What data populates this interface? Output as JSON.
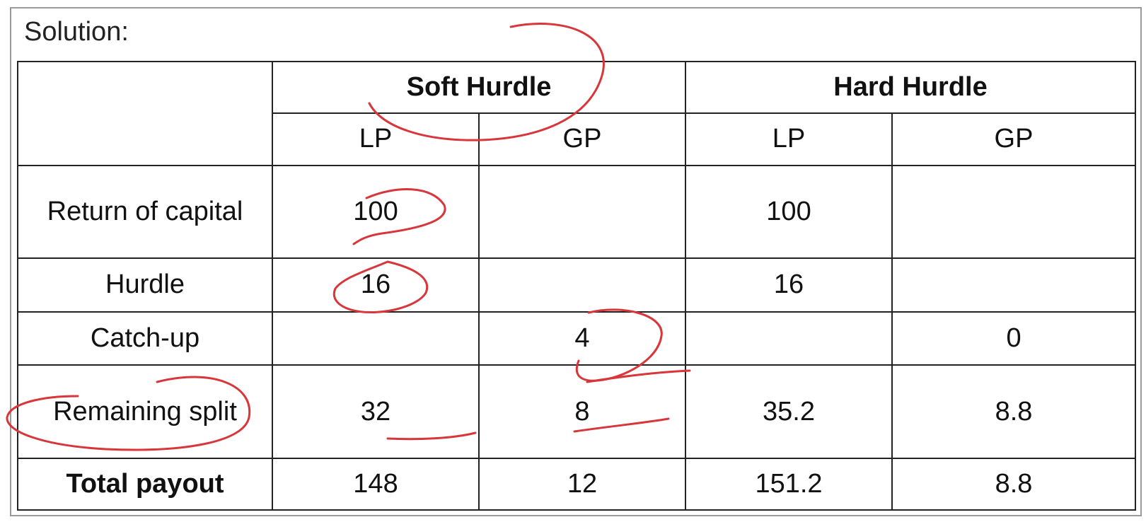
{
  "heading": "Solution:",
  "table": {
    "groups": [
      "Soft Hurdle",
      "Hard Hurdle"
    ],
    "subheaders": [
      "LP",
      "GP",
      "LP",
      "GP"
    ],
    "rows": [
      {
        "label": "Return of capital",
        "cells": [
          "100",
          "",
          "100",
          ""
        ]
      },
      {
        "label": "Hurdle",
        "cells": [
          "16",
          "",
          "16",
          ""
        ]
      },
      {
        "label": "Catch-up",
        "cells": [
          "",
          "4",
          "",
          "0"
        ]
      },
      {
        "label": "Remaining split",
        "cells": [
          "32",
          "8",
          "35.2",
          "8.8"
        ]
      },
      {
        "label": "Total payout",
        "cells": [
          "148",
          "12",
          "151.2",
          "8.8"
        ]
      }
    ]
  },
  "annotation_color": "#d8363b"
}
